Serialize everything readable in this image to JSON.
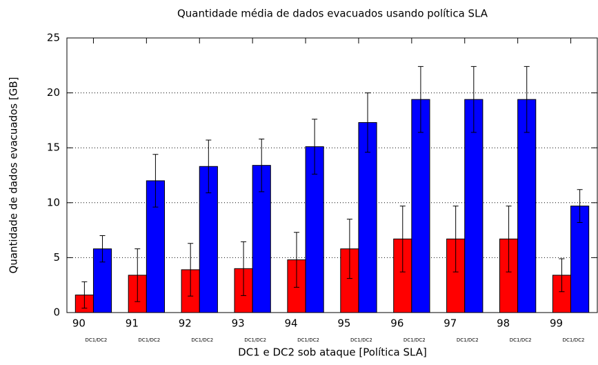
{
  "chart_data": {
    "type": "bar",
    "title": "Quantidade média de dados evacuados usando política SLA",
    "x_label": "DC1 e DC2 sob ataque [Política SLA]",
    "y_label": "Quantidade de dados evacuados [GB]",
    "category_sublabel": "DC1/DC2",
    "categories": [
      "90",
      "91",
      "92",
      "93",
      "94",
      "95",
      "96",
      "97",
      "98",
      "99"
    ],
    "series": [
      {
        "color": "#ff0000",
        "values": [
          1.6,
          3.4,
          3.9,
          4.0,
          4.8,
          5.8,
          6.7,
          6.7,
          6.7,
          3.4
        ],
        "errors": [
          1.2,
          2.4,
          2.4,
          2.45,
          2.5,
          2.7,
          3.0,
          3.0,
          3.0,
          1.5
        ]
      },
      {
        "color": "#0000ff",
        "values": [
          5.8,
          12.0,
          13.3,
          13.4,
          15.1,
          17.3,
          19.4,
          19.4,
          19.4,
          9.7
        ],
        "errors": [
          1.2,
          2.4,
          2.4,
          2.4,
          2.5,
          2.7,
          3.0,
          3.0,
          3.0,
          1.5
        ]
      }
    ],
    "ylim": [
      0,
      25
    ],
    "yticks": [
      0,
      5,
      10,
      15,
      20,
      25
    ],
    "grid": true
  }
}
